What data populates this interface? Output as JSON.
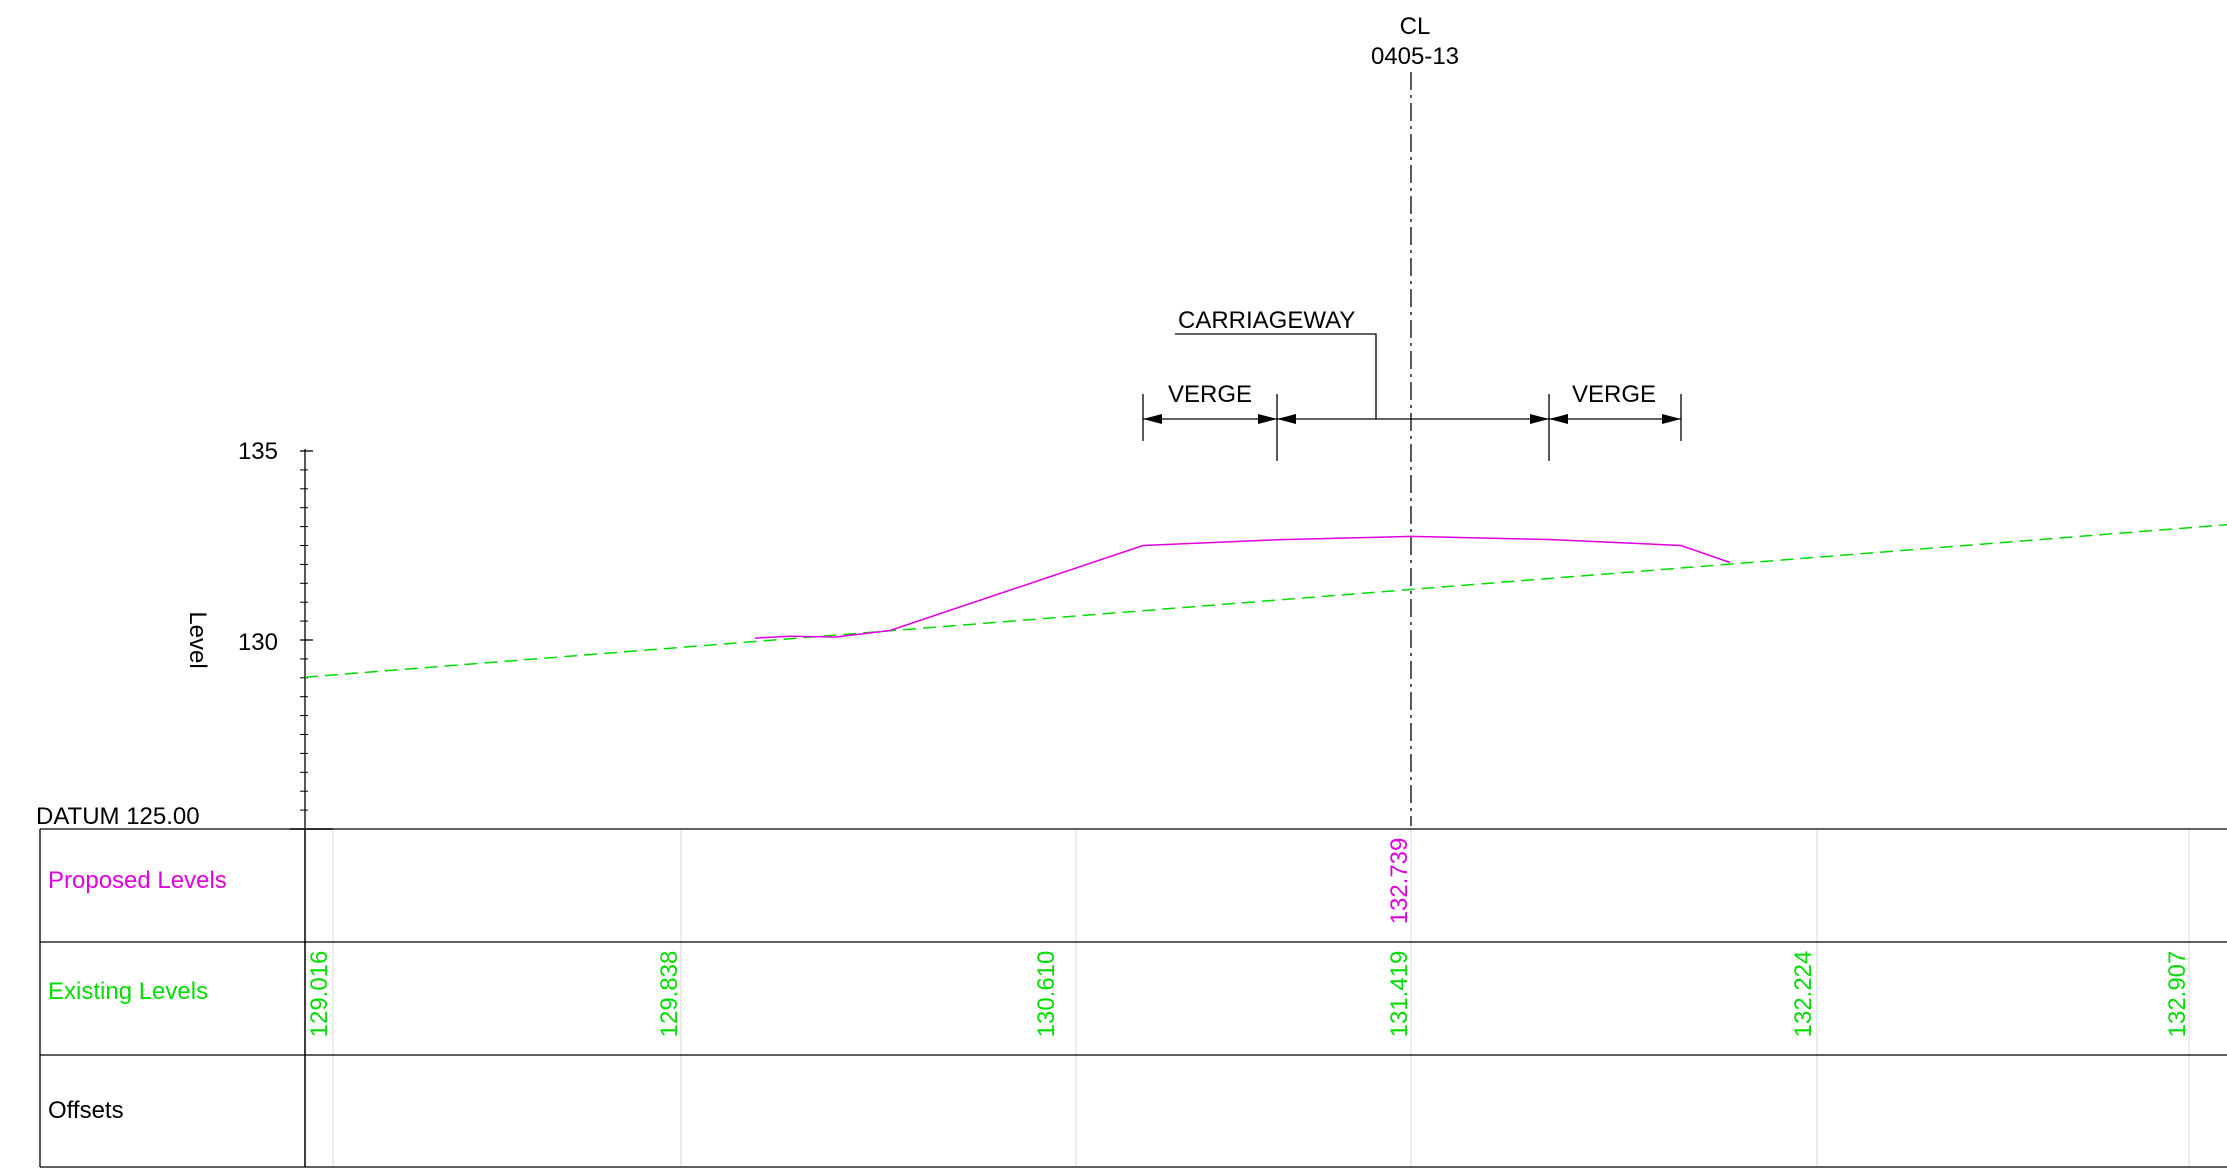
{
  "centerline": {
    "label": "CL",
    "chainage": "0405-13"
  },
  "annotations": {
    "carriageway": "CARRIAGEWAY",
    "verge_left": "VERGE",
    "verge_right": "VERGE"
  },
  "axis": {
    "label": "Level",
    "datum_label": "DATUM 125.00",
    "datum": 125,
    "ticks": [
      135,
      130
    ],
    "ylim": [
      125,
      135
    ]
  },
  "table": {
    "rows": [
      {
        "label": "Proposed Levels",
        "color": "#e000e0"
      },
      {
        "label": "Existing Levels",
        "color": "#00dd00"
      },
      {
        "label": "Offsets",
        "color": "#000000"
      }
    ],
    "proposed_values": [
      "132.739"
    ],
    "existing_values": [
      "129.016",
      "129.838",
      "130.610",
      "131.419",
      "132.224",
      "132.907"
    ]
  },
  "chart_data": {
    "type": "line",
    "xlabel": "",
    "ylabel": "Level",
    "ylim": [
      125,
      135
    ],
    "series": [
      {
        "name": "Proposed Levels",
        "color": "#e000e0",
        "style": "solid",
        "values": [
          130.05,
          130.1,
          130.08,
          130.25,
          132.5,
          132.65,
          132.74,
          132.66,
          132.5,
          132.05
        ]
      },
      {
        "name": "Existing Levels",
        "color": "#00dd00",
        "style": "dashed",
        "values": [
          129.016,
          133.05
        ]
      }
    ]
  },
  "colors": {
    "proposed": "#e000e0",
    "existing": "#00dd00",
    "line": "#000000",
    "grid": "#d8d8d8"
  }
}
